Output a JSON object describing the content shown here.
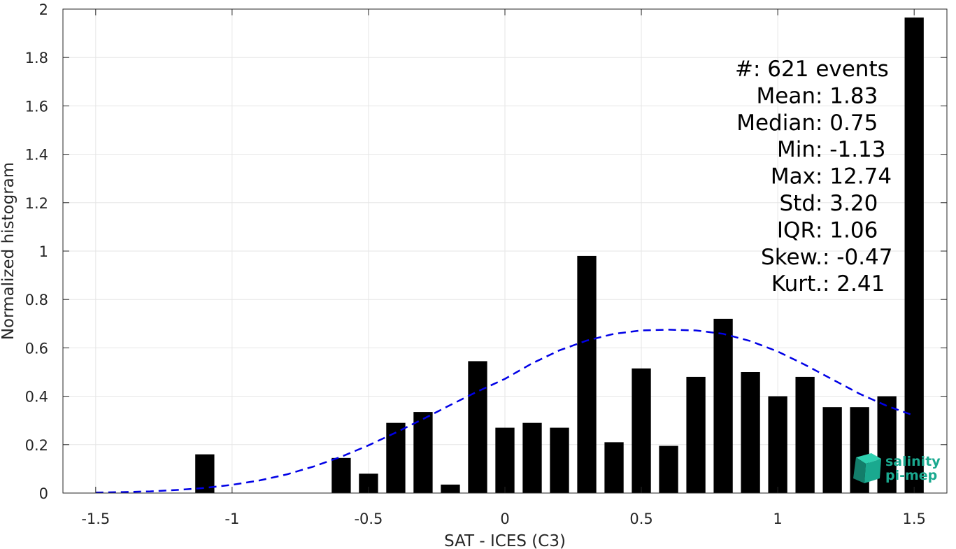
{
  "chart_data": {
    "type": "bar",
    "xlabel": "SAT - ICES (C3)",
    "ylabel": "Normalized histogram",
    "xlim": [
      -1.62,
      1.62
    ],
    "ylim": [
      0,
      2
    ],
    "x_ticks": [
      -1.5,
      -1,
      -0.5,
      0,
      0.5,
      1,
      1.5
    ],
    "x_tick_labels": [
      "-1.5",
      "-1",
      "-0.5",
      "0",
      "0.5",
      "1",
      "1.5"
    ],
    "y_ticks": [
      0,
      0.2,
      0.4,
      0.6,
      0.8,
      1,
      1.2,
      1.4,
      1.6,
      1.8,
      2
    ],
    "y_tick_labels": [
      "0",
      "0.2",
      "0.4",
      "0.6",
      "0.8",
      "1",
      "1.2",
      "1.4",
      "1.6",
      "1.8",
      "2"
    ],
    "grid": true,
    "bar_width": 0.07,
    "bar_color": "#000000",
    "bars": {
      "x": [
        -1.1,
        -0.6,
        -0.5,
        -0.4,
        -0.3,
        -0.2,
        -0.1,
        0.0,
        0.1,
        0.2,
        0.3,
        0.4,
        0.5,
        0.6,
        0.7,
        0.8,
        0.9,
        1.0,
        1.1,
        1.2,
        1.3,
        1.4,
        1.5
      ],
      "values": [
        0.16,
        0.145,
        0.08,
        0.29,
        0.335,
        0.035,
        0.545,
        0.27,
        0.29,
        0.27,
        0.98,
        0.21,
        0.515,
        0.195,
        0.48,
        0.72,
        0.5,
        0.4,
        0.48,
        0.355,
        0.355,
        0.4,
        1.965
      ]
    },
    "fit_curve": {
      "style": "dashed",
      "color": "#0000e6",
      "x": [
        -1.5,
        -1.4,
        -1.3,
        -1.2,
        -1.1,
        -1.0,
        -0.9,
        -0.8,
        -0.7,
        -0.6,
        -0.5,
        -0.4,
        -0.3,
        -0.2,
        -0.1,
        0.0,
        0.1,
        0.2,
        0.3,
        0.4,
        0.5,
        0.6,
        0.7,
        0.8,
        0.9,
        1.0,
        1.1,
        1.2,
        1.3,
        1.4,
        1.5
      ],
      "y": [
        0.002,
        0.004,
        0.007,
        0.013,
        0.021,
        0.034,
        0.052,
        0.077,
        0.11,
        0.15,
        0.197,
        0.25,
        0.306,
        0.364,
        0.42,
        0.472,
        0.536,
        0.59,
        0.63,
        0.658,
        0.672,
        0.675,
        0.672,
        0.658,
        0.628,
        0.585,
        0.53,
        0.47,
        0.41,
        0.36,
        0.32
      ]
    },
    "stats": [
      {
        "label": "#  ",
        "value": ": 621 events"
      },
      {
        "label": "Mean ",
        "value": ": 1.83"
      },
      {
        "label": "Median ",
        "value": ": 0.75"
      },
      {
        "label": "Min ",
        "value": ": -1.13"
      },
      {
        "label": "Max ",
        "value": ": 12.74"
      },
      {
        "label": "Std ",
        "value": ": 3.20"
      },
      {
        "label": "IQR ",
        "value": ": 1.06"
      },
      {
        "label": "Skew. ",
        "value": ": -0.47"
      },
      {
        "label": "Kurt. ",
        "value": ": 2.41"
      }
    ]
  },
  "logo": {
    "line1": "salinity",
    "line2": "pi-mep",
    "color": "#1aa98f"
  }
}
